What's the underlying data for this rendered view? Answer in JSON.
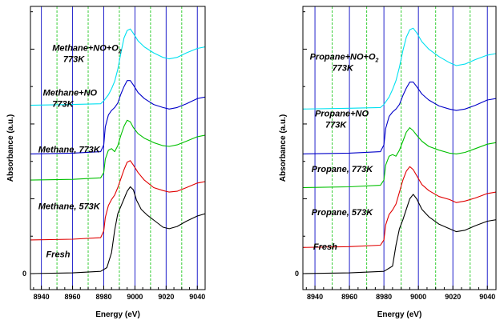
{
  "chart_data": [
    {
      "type": "line",
      "xlabel": "Energy (eV)",
      "ylabel": "Absorbance (a.u.)",
      "xlim": [
        8933,
        9045
      ],
      "xticks": [
        8940,
        8960,
        8980,
        9000,
        9020,
        9040
      ],
      "yticks": [
        0
      ],
      "grid": {
        "blue_lines_x": [
          8940,
          8960,
          8980,
          9000,
          9020,
          9040
        ],
        "green_dashed_lines_x": [
          8950,
          8970,
          8990,
          9010,
          9030
        ]
      },
      "series_colors": [
        "#000000",
        "#e00000",
        "#00c000",
        "#0000c8",
        "#00e0f0"
      ],
      "series": [
        {
          "color": "#000000",
          "offset": 0,
          "x": [
            8933,
            8960,
            8978,
            8982,
            8985,
            8987,
            8989,
            8991,
            8993,
            8995,
            8997,
            8999,
            9001,
            9004,
            9008,
            9013,
            9018,
            9022,
            9027,
            9033,
            9040,
            9045
          ],
          "y": [
            0,
            0.01,
            0.03,
            0.08,
            0.28,
            0.58,
            0.8,
            0.9,
            1.0,
            1.1,
            1.16,
            1.12,
            0.98,
            0.86,
            0.78,
            0.7,
            0.62,
            0.6,
            0.63,
            0.7,
            0.77,
            0.8
          ]
        },
        {
          "color": "#e00000",
          "offset": 0.45,
          "x": [
            8933,
            8960,
            8978,
            8980,
            8981,
            8983,
            8985,
            8987,
            8989,
            8991,
            8993,
            8995,
            8997,
            8999,
            9002,
            9006,
            9012,
            9018,
            9022,
            9027,
            9033,
            9040,
            9045
          ],
          "y": [
            0,
            0.01,
            0.03,
            0.12,
            0.3,
            0.46,
            0.54,
            0.6,
            0.7,
            0.82,
            0.94,
            1.04,
            1.06,
            1.0,
            0.9,
            0.8,
            0.7,
            0.66,
            0.64,
            0.65,
            0.7,
            0.76,
            0.78
          ]
        },
        {
          "color": "#00c000",
          "offset": 1.25,
          "x": [
            8933,
            8960,
            8978,
            8980,
            8981,
            8983,
            8985,
            8987,
            8989,
            8991,
            8993,
            8995,
            8997,
            8999,
            9002,
            9006,
            9012,
            9018,
            9022,
            9027,
            9033,
            9040,
            9045
          ],
          "y": [
            0,
            0.01,
            0.03,
            0.1,
            0.28,
            0.4,
            0.42,
            0.38,
            0.46,
            0.6,
            0.72,
            0.8,
            0.78,
            0.7,
            0.62,
            0.56,
            0.5,
            0.46,
            0.45,
            0.47,
            0.52,
            0.58,
            0.6
          ]
        },
        {
          "color": "#0000c8",
          "offset": 1.6,
          "x": [
            8933,
            8960,
            8978,
            8980,
            8981,
            8983,
            8985,
            8987,
            8989,
            8991,
            8993,
            8995,
            8997,
            8999,
            9002,
            9006,
            9012,
            9018,
            9022,
            9027,
            9033,
            9040,
            9045
          ],
          "y": [
            0,
            0.01,
            0.03,
            0.12,
            0.36,
            0.52,
            0.58,
            0.62,
            0.68,
            0.8,
            0.9,
            0.98,
            0.98,
            0.92,
            0.82,
            0.74,
            0.66,
            0.62,
            0.6,
            0.62,
            0.67,
            0.74,
            0.76
          ]
        },
        {
          "color": "#00e0f0",
          "offset": 2.25,
          "x": [
            8933,
            8960,
            8978,
            8980,
            8983,
            8985,
            8987,
            8989,
            8991,
            8993,
            8995,
            8997,
            8999,
            9002,
            9006,
            9012,
            9018,
            9022,
            9027,
            9033,
            9040,
            9045
          ],
          "y": [
            0,
            0.01,
            0.02,
            0.06,
            0.14,
            0.22,
            0.32,
            0.48,
            0.7,
            0.9,
            1.0,
            1.02,
            0.96,
            0.86,
            0.78,
            0.7,
            0.64,
            0.62,
            0.64,
            0.7,
            0.76,
            0.78
          ]
        }
      ],
      "annotations": [
        {
          "text": "Methane+NO+O",
          "sub": "2",
          "x": 8947,
          "y": 2.98
        },
        {
          "text": "773K",
          "x": 8954,
          "y": 2.83
        },
        {
          "text": "Methane+NO",
          "x": 8941,
          "y": 2.38
        },
        {
          "text": "773K",
          "x": 8947,
          "y": 2.23
        },
        {
          "text": "Methane, 773K",
          "x": 8938,
          "y": 1.62
        },
        {
          "text": "Methane, 573K",
          "x": 8938,
          "y": 0.86
        },
        {
          "text": "Fresh",
          "x": 8943,
          "y": 0.22
        }
      ]
    },
    {
      "type": "line",
      "xlabel": "Energy (eV)",
      "ylabel": "Absorbance (a.u.)",
      "xlim": [
        8933,
        9045
      ],
      "xticks": [
        8940,
        8960,
        8980,
        9000,
        9020,
        9040
      ],
      "yticks": [
        0
      ],
      "grid": {
        "blue_lines_x": [
          8940,
          8960,
          8980,
          9000,
          9020,
          9040
        ],
        "green_dashed_lines_x": [
          8950,
          8970,
          8990,
          9010,
          9030
        ]
      },
      "series_colors": [
        "#000000",
        "#e00000",
        "#00c000",
        "#0000c8",
        "#00e0f0"
      ],
      "series": [
        {
          "color": "#000000",
          "offset": 0,
          "x": [
            8933,
            8960,
            8980,
            8985,
            8987,
            8989,
            8991,
            8993,
            8995,
            8997,
            8999,
            9002,
            9006,
            9012,
            9018,
            9022,
            9027,
            9033,
            9040,
            9045
          ],
          "y": [
            0,
            0.01,
            0.03,
            0.1,
            0.38,
            0.6,
            0.72,
            0.86,
            1.0,
            1.06,
            1.0,
            0.86,
            0.76,
            0.66,
            0.6,
            0.56,
            0.58,
            0.64,
            0.7,
            0.72
          ]
        },
        {
          "color": "#e00000",
          "offset": 0.35,
          "x": [
            8933,
            8960,
            8978,
            8980,
            8981,
            8983,
            8985,
            8987,
            8989,
            8991,
            8993,
            8995,
            8997,
            8999,
            9002,
            9006,
            9012,
            9018,
            9022,
            9027,
            9033,
            9040,
            9045
          ],
          "y": [
            0,
            0.01,
            0.03,
            0.1,
            0.3,
            0.44,
            0.5,
            0.58,
            0.74,
            0.9,
            1.02,
            1.08,
            1.04,
            0.96,
            0.84,
            0.76,
            0.68,
            0.64,
            0.6,
            0.62,
            0.66,
            0.72,
            0.74
          ]
        },
        {
          "color": "#00c000",
          "offset": 1.15,
          "x": [
            8933,
            8960,
            8978,
            8980,
            8981,
            8983,
            8985,
            8987,
            8989,
            8991,
            8993,
            8995,
            8997,
            8999,
            9002,
            9006,
            9012,
            9018,
            9022,
            9027,
            9033,
            9040,
            9045
          ],
          "y": [
            0,
            0.01,
            0.03,
            0.1,
            0.3,
            0.42,
            0.44,
            0.42,
            0.5,
            0.62,
            0.74,
            0.8,
            0.76,
            0.7,
            0.62,
            0.55,
            0.5,
            0.46,
            0.45,
            0.47,
            0.52,
            0.58,
            0.6
          ]
        },
        {
          "color": "#0000c8",
          "offset": 1.6,
          "x": [
            8933,
            8960,
            8978,
            8980,
            8981,
            8983,
            8985,
            8987,
            8989,
            8991,
            8993,
            8995,
            8997,
            8999,
            9002,
            9006,
            9012,
            9018,
            9022,
            9027,
            9033,
            9040,
            9045
          ],
          "y": [
            0,
            0.01,
            0.03,
            0.12,
            0.34,
            0.5,
            0.56,
            0.6,
            0.66,
            0.78,
            0.88,
            0.96,
            0.96,
            0.9,
            0.8,
            0.72,
            0.64,
            0.6,
            0.58,
            0.6,
            0.65,
            0.72,
            0.74
          ]
        },
        {
          "color": "#00e0f0",
          "offset": 2.2,
          "x": [
            8933,
            8960,
            8978,
            8980,
            8983,
            8985,
            8987,
            8989,
            8991,
            8993,
            8995,
            8997,
            8999,
            9002,
            9006,
            9012,
            9018,
            9022,
            9027,
            9033,
            9040,
            9045
          ],
          "y": [
            0,
            0.01,
            0.02,
            0.06,
            0.16,
            0.26,
            0.38,
            0.56,
            0.78,
            0.96,
            1.06,
            1.08,
            1.02,
            0.9,
            0.8,
            0.7,
            0.62,
            0.58,
            0.6,
            0.66,
            0.72,
            0.74
          ]
        }
      ],
      "annotations": [
        {
          "text": "Propane+NO+O",
          "sub": "2",
          "x": 8937,
          "y": 2.86
        },
        {
          "text": "773K",
          "x": 8950,
          "y": 2.71
        },
        {
          "text": "Propane+NO",
          "x": 8940,
          "y": 2.1
        },
        {
          "text": "773K",
          "x": 8946,
          "y": 1.95
        },
        {
          "text": "Propane, 773K",
          "x": 8938,
          "y": 1.36
        },
        {
          "text": "Propane, 573K",
          "x": 8938,
          "y": 0.78
        },
        {
          "text": "Fresh",
          "x": 8939,
          "y": 0.32
        }
      ]
    }
  ]
}
